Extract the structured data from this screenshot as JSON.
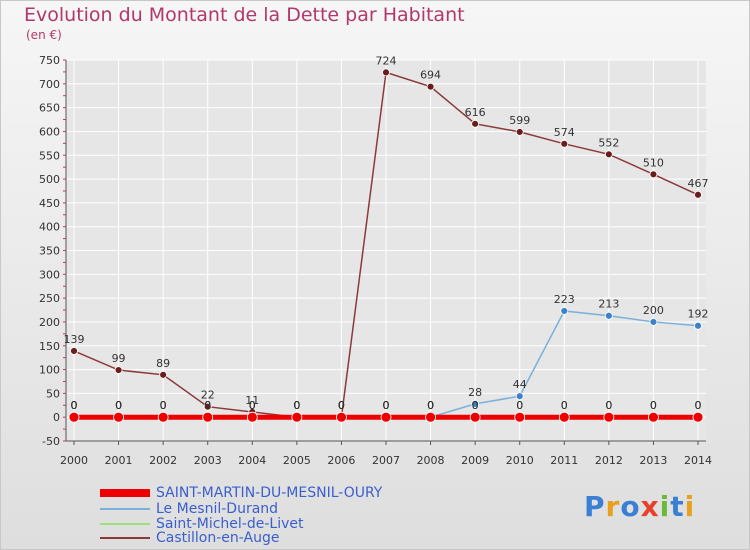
{
  "title": "Evolution du Montant de la Dette par Habitant",
  "unit_label": "(en €)",
  "logo": {
    "text": "Proxiti",
    "letter_colors": [
      "#3b7fd4",
      "#e8a020",
      "#3b7fd4",
      "#e8402a",
      "#6cb83a",
      "#3b7fd4",
      "#e8a020"
    ]
  },
  "colors": {
    "axis": "#555555",
    "grid": "#ffffff",
    "tick_label": "#333333",
    "data_label": "#333333"
  },
  "chart_data": {
    "type": "line",
    "x": [
      2000,
      2001,
      2002,
      2003,
      2004,
      2005,
      2006,
      2007,
      2008,
      2009,
      2010,
      2011,
      2012,
      2013,
      2014
    ],
    "ylim": [
      -50,
      750
    ],
    "yticks": [
      -50,
      0,
      50,
      100,
      150,
      200,
      250,
      300,
      350,
      400,
      450,
      500,
      550,
      600,
      650,
      700,
      750
    ],
    "grid": true,
    "legend_position": "bottom-left",
    "series": [
      {
        "name": "SAINT-MARTIN-DU-MESNIL-OURY",
        "color": "#ee0000",
        "marker": "#ee0000",
        "values": [
          0,
          0,
          0,
          0,
          0,
          0,
          0,
          0,
          0,
          0,
          0,
          0,
          0,
          0,
          0
        ],
        "labels": [
          "0",
          "0",
          "0",
          "0",
          "0",
          "0",
          "0",
          "0",
          "0",
          "0",
          "0",
          "0",
          "0",
          "0",
          "0"
        ]
      },
      {
        "name": "Le Mesnil-Durand",
        "color": "#7ab0dc",
        "marker": "#3b82c8",
        "values": [
          0,
          0,
          0,
          0,
          0,
          0,
          0,
          0,
          0,
          28,
          44,
          223,
          213,
          200,
          192
        ],
        "labels": [
          "0",
          "0",
          "0",
          "0",
          "0",
          "0",
          "0",
          "0",
          "0",
          "28",
          "44",
          "223",
          "213",
          "200",
          "192"
        ]
      },
      {
        "name": "Saint-Michel-de-Livet",
        "color": "#9ee07a",
        "marker": "#7acc50",
        "values": [
          0,
          0,
          0,
          0,
          0,
          0,
          0,
          0,
          0,
          0,
          0,
          0,
          0,
          0,
          0
        ],
        "labels": [
          "0",
          "0",
          "0",
          "0",
          "0",
          "0",
          "0",
          "0",
          "0",
          "0",
          "0",
          "0",
          "0",
          "0",
          "0"
        ]
      },
      {
        "name": "Castillon-en-Auge",
        "color": "#8b3a3a",
        "marker": "#6b1c1c",
        "values": [
          139,
          99,
          89,
          22,
          11,
          0,
          0,
          724,
          694,
          616,
          599,
          574,
          552,
          510,
          467
        ],
        "labels": [
          "139",
          "99",
          "89",
          "22",
          "11",
          "0",
          "0",
          "724",
          "694",
          "616",
          "599",
          "574",
          "552",
          "510",
          "467"
        ]
      }
    ]
  }
}
